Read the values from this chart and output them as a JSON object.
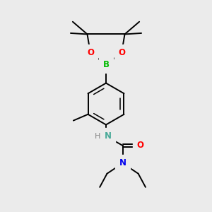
{
  "background_color": "#ebebeb",
  "bond_color": "#000000",
  "atom_colors": {
    "B": "#00bb00",
    "O": "#ff0000",
    "N_blue": "#0000ee",
    "N_nh": "#4aaa99",
    "H": "#888888",
    "C": "#000000"
  },
  "figsize": [
    3.0,
    3.0
  ],
  "dpi": 100
}
